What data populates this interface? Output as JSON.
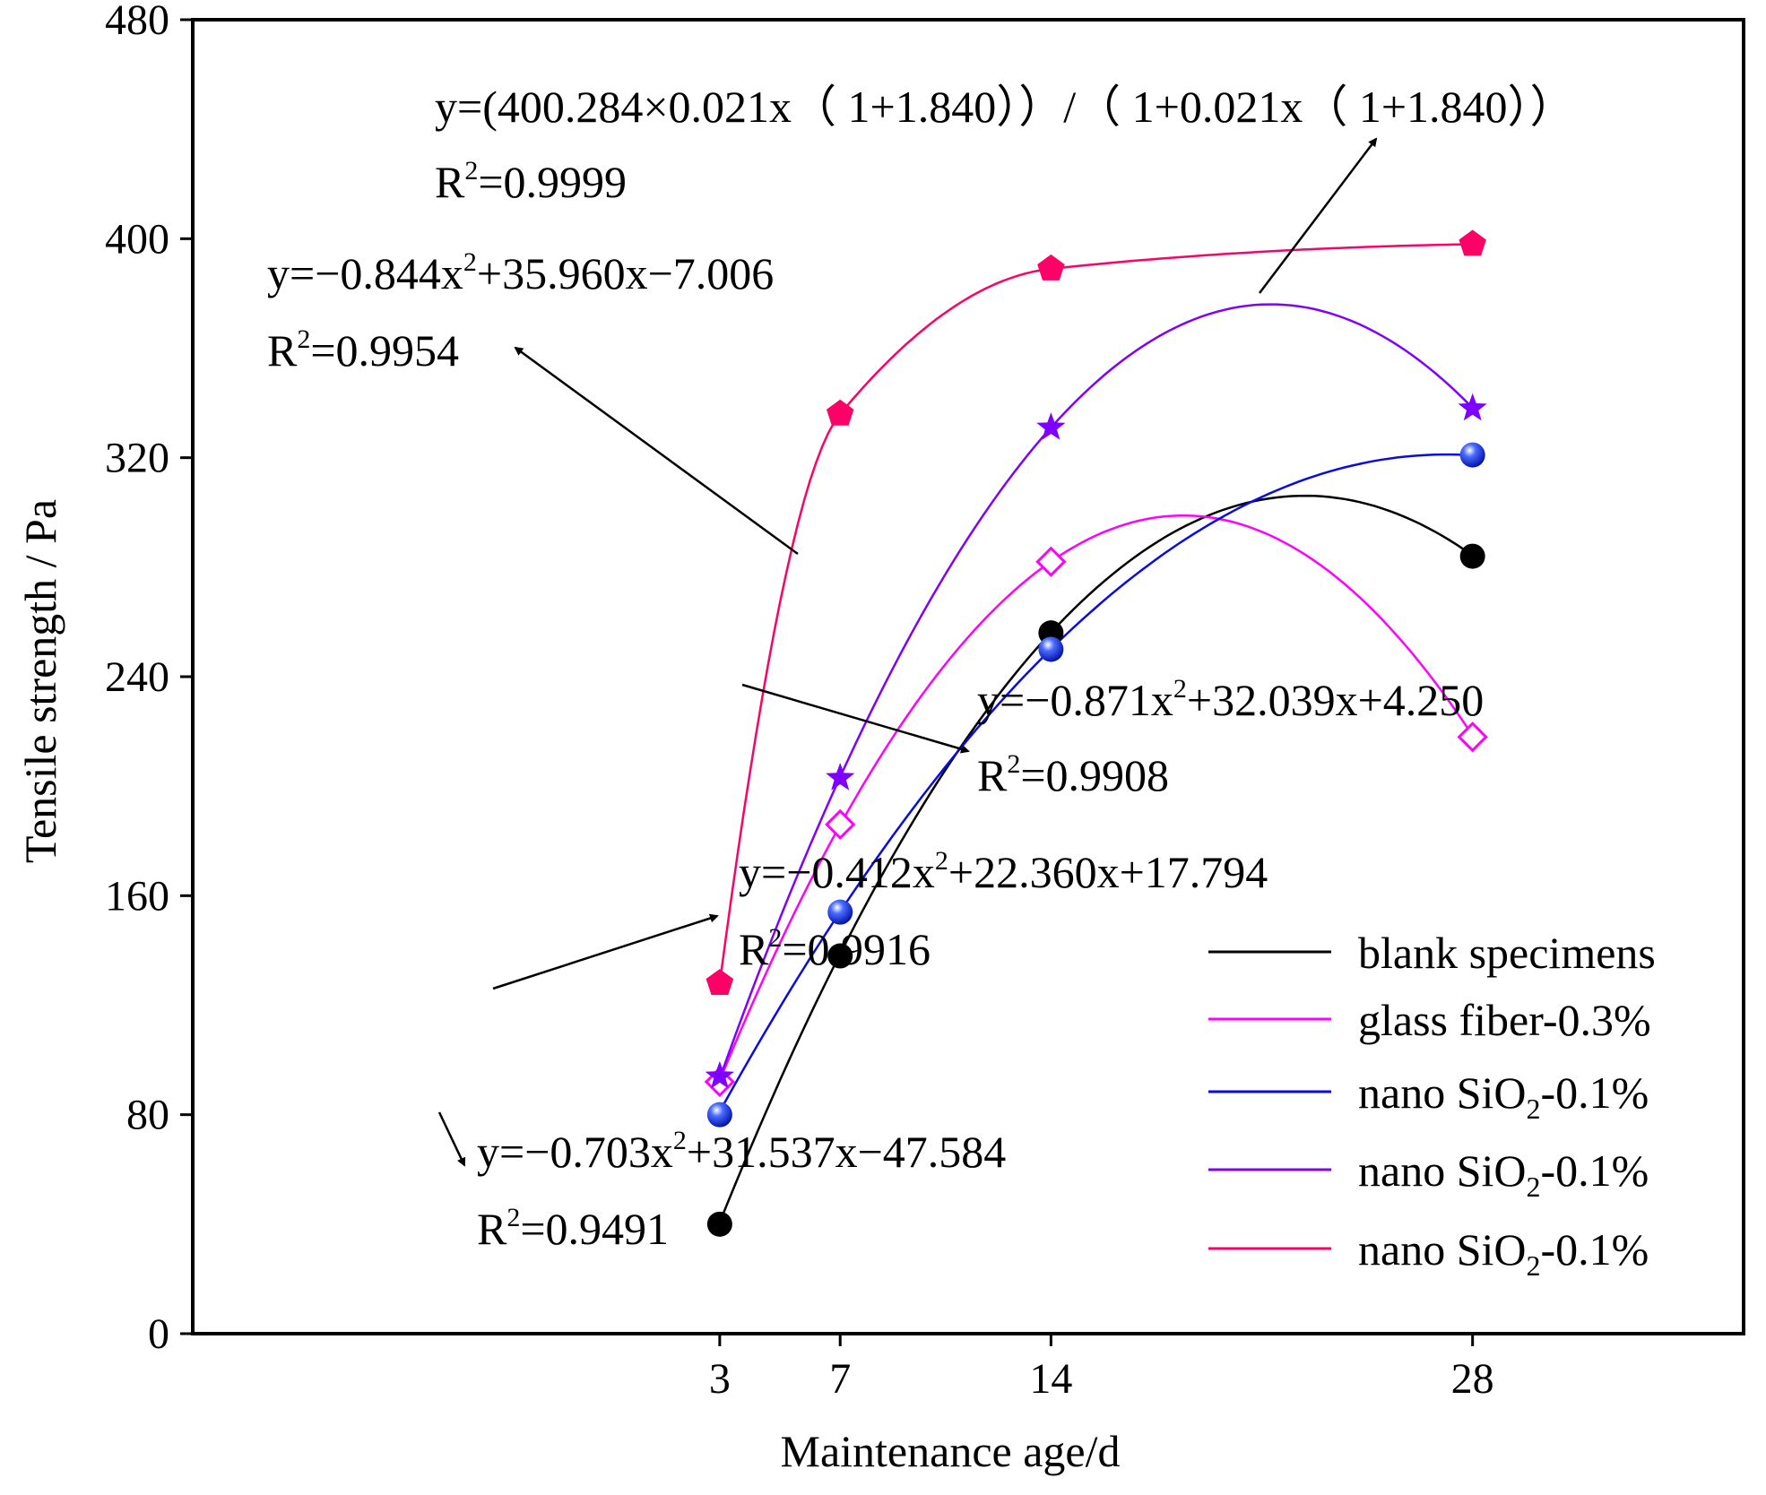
{
  "chart_data": {
    "type": "line",
    "xlabel": "Maintenance age/d",
    "ylabel": "Tensile strength / Pa",
    "xlim": [
      -14.5,
      37.0
    ],
    "ylim": [
      0,
      480
    ],
    "x_ticks": [
      "3",
      "7",
      "14",
      "28"
    ],
    "y_ticks": [
      "0",
      "80",
      "160",
      "240",
      "320",
      "400",
      "480"
    ],
    "grid": false,
    "legend_position": "bottom-right",
    "series": [
      {
        "name": "blank specimens",
        "color": "#000000",
        "marker": "circle",
        "x": [
          3,
          7,
          14,
          28
        ],
        "values": [
          40,
          138,
          256,
          284
        ],
        "fit": {
          "kind": "poly2",
          "a": -0.703,
          "b": 31.537,
          "c": -47.584
        }
      },
      {
        "name": "glass fiber-0.3%",
        "color": "#ff00ff",
        "marker": "diamond-open",
        "x": [
          3,
          7,
          14,
          28
        ],
        "values": [
          92,
          186,
          282,
          218
        ],
        "fit": {
          "kind": "poly2",
          "a": -0.871,
          "b": 32.039,
          "c": 4.25
        }
      },
      {
        "name_main": "nano SiO",
        "name_sub": "2",
        "name_tail": "-0.1%",
        "color": "#0a0ae6",
        "marker": "sphere",
        "x": [
          3,
          7,
          14,
          28
        ],
        "values": [
          80,
          154,
          250,
          321
        ],
        "fit": {
          "kind": "poly2",
          "a": -0.412,
          "b": 22.36,
          "c": 17.794
        }
      },
      {
        "name_main": "nano SiO",
        "name_sub": "2",
        "name_tail": "-0.1%",
        "color": "#8000ff",
        "marker": "star",
        "x": [
          3,
          7,
          14,
          28
        ],
        "values": [
          94,
          203,
          331,
          338
        ],
        "fit": {
          "kind": "poly2",
          "a": -0.844,
          "b": 35.96,
          "c": -7.006
        }
      },
      {
        "name_main": "nano SiO",
        "name_sub": "2",
        "name_tail": "-0.1%",
        "color": "#ff0066",
        "marker": "pentagon",
        "x": [
          3,
          7,
          14,
          28
        ],
        "values": [
          128,
          336,
          389,
          398
        ],
        "fit": {
          "kind": "hill",
          "a": 400.284,
          "k": 0.021,
          "n": 1.84
        }
      }
    ],
    "annotations": [
      {
        "eq": "y=(400.284×0.021x（ 1+1.840））/（ 1+0.021x（ 1+1.840））",
        "r2_value": "=0.9999"
      },
      {
        "eq_pre": "y=−0.844x",
        "eq_post": "+35.960x−7.006",
        "r2_value": "=0.9954"
      },
      {
        "eq_pre": "y=−0.871x",
        "eq_post": "+32.039x+4.250",
        "r2_value": "=0.9908"
      },
      {
        "eq_pre": "y=−0.412x",
        "eq_post": "+22.360x+17.794",
        "r2_value": "=0.9916"
      },
      {
        "eq_pre": "y=−0.703x",
        "eq_post": "+31.537x−47.584",
        "r2_value": "=0.9491"
      }
    ],
    "r_symbol": "R",
    "power": "2"
  }
}
